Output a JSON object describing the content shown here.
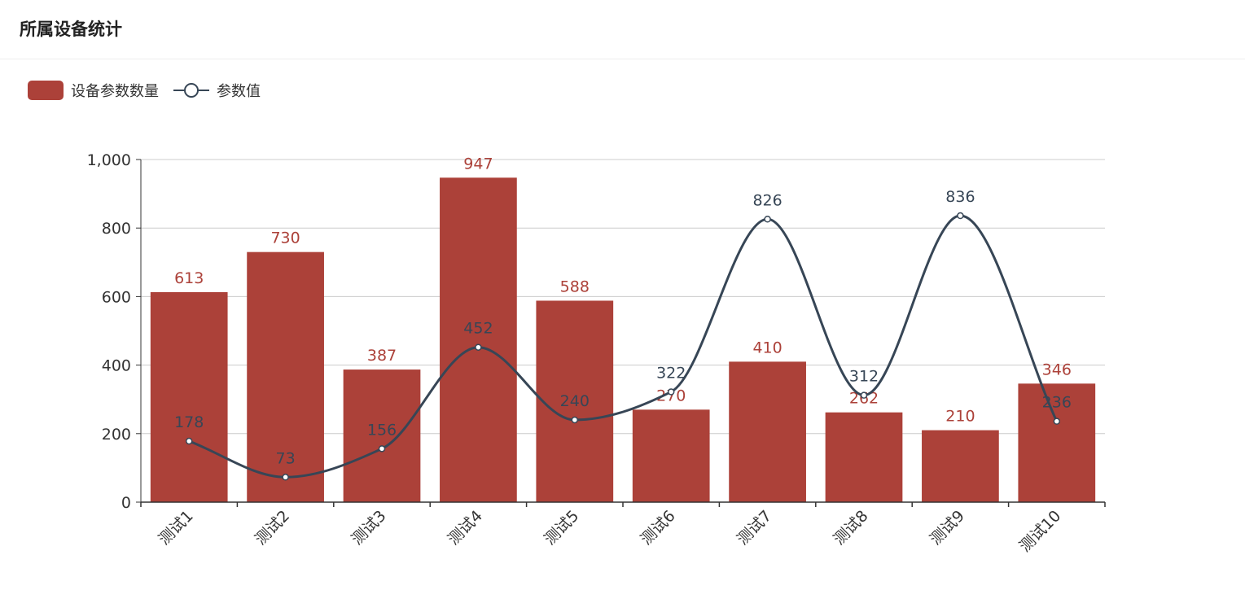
{
  "panel": {
    "title": "所属设备统计"
  },
  "colors": {
    "bar": "#ac4139",
    "line": "#374656",
    "axis": "#333333",
    "grid": "#cccccc"
  },
  "chart_data": {
    "type": "bar",
    "categories": [
      "测试1",
      "测试2",
      "测试3",
      "测试4",
      "测试5",
      "测试6",
      "测试7",
      "测试8",
      "测试9",
      "测试10"
    ],
    "series": [
      {
        "name": "设备参数数量",
        "type": "bar",
        "values": [
          613,
          730,
          387,
          947,
          588,
          270,
          410,
          262,
          210,
          346
        ]
      },
      {
        "name": "参数值",
        "type": "line",
        "smooth": true,
        "values": [
          178,
          73,
          156,
          452,
          240,
          322,
          826,
          312,
          836,
          236
        ]
      }
    ],
    "yticks": [
      "0",
      "200",
      "400",
      "600",
      "800",
      "1,000"
    ],
    "ylim": [
      0,
      1000
    ],
    "grid": true,
    "legend_position": "top-left",
    "title": "",
    "xlabel": "",
    "ylabel": ""
  }
}
